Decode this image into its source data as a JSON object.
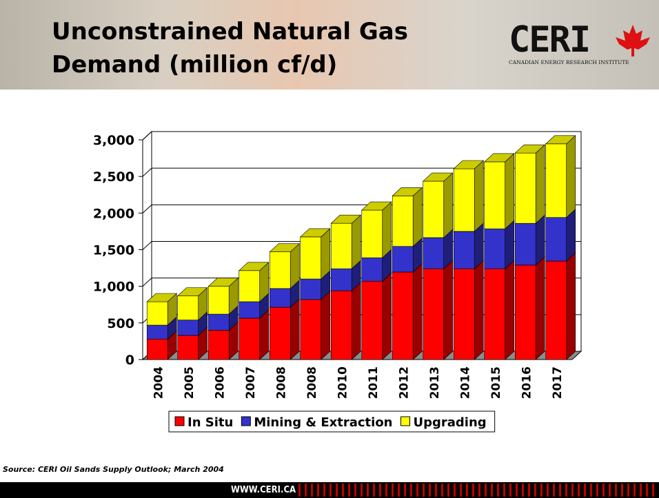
{
  "chart_data": {
    "type": "bar3d_stacked",
    "title": "Unconstrained Natural Gas Demand (million cf/d)",
    "categories": [
      "2004",
      "2005",
      "2006",
      "2007",
      "2008",
      "2008",
      "2010",
      "2011",
      "2012",
      "2013",
      "2014",
      "2015",
      "2016",
      "2017"
    ],
    "series": [
      {
        "name": "In Situ",
        "color": "#ff0000",
        "values": [
          280,
          330,
          400,
          565,
          715,
          820,
          940,
          1070,
          1195,
          1240,
          1240,
          1240,
          1290,
          1345
        ]
      },
      {
        "name": "Mining & Extraction",
        "color": "#3333cc",
        "values": [
          190,
          210,
          220,
          225,
          255,
          280,
          300,
          320,
          350,
          425,
          510,
          545,
          570,
          595
        ]
      },
      {
        "name": "Upgrading",
        "color": "#ffff00",
        "values": [
          320,
          330,
          380,
          425,
          500,
          575,
          620,
          650,
          690,
          770,
          855,
          915,
          960,
          1005
        ]
      }
    ],
    "ylim": [
      0,
      3000
    ],
    "yticks": [
      0,
      500,
      {
        "value": 1000,
        "label": "1,000"
      },
      {
        "value": 1500,
        "label": "1,500"
      },
      {
        "value": 2000,
        "label": "2,000"
      },
      {
        "value": 2500,
        "label": "2,500"
      },
      {
        "value": 3000,
        "label": "3,000"
      }
    ],
    "grid": true,
    "legend": "bottom"
  },
  "logo": {
    "text": "CERI",
    "subtitle": "CANADIAN ENERGY RESEARCH INSTITUTE"
  },
  "source": "Source: CERI Oil Sands Supply Outlook; March 2004",
  "footer": "WWW.CERI.CA"
}
